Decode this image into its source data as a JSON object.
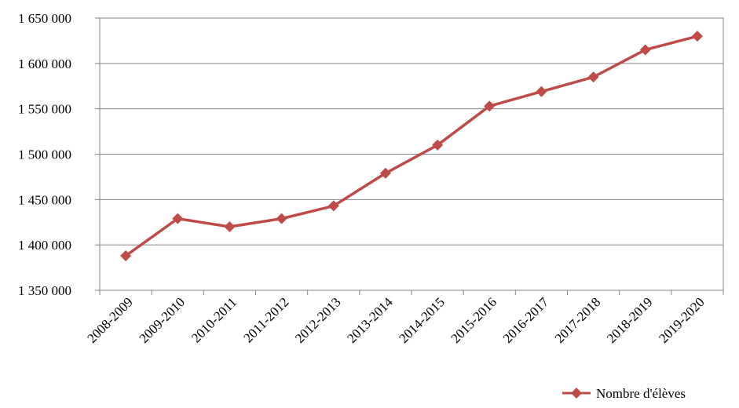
{
  "chart_data": {
    "type": "line",
    "title": "",
    "xlabel": "",
    "ylabel": "",
    "categories": [
      "2008-2009",
      "2009-2010",
      "2010-2011",
      "2011-2012",
      "2012-2013",
      "2013-2014",
      "2014-2015",
      "2015-2016",
      "2016-2017",
      "2017-2018",
      "2018-2019",
      "2019-2020"
    ],
    "series": [
      {
        "name": "Nombre d'élèves",
        "color": "#BE4B48",
        "marker": "diamond",
        "values": [
          1388000,
          1429000,
          1420000,
          1429000,
          1443000,
          1479000,
          1510000,
          1553000,
          1569000,
          1585000,
          1615000,
          1630000
        ]
      }
    ],
    "ylim": [
      1350000,
      1650000
    ],
    "yticks": [
      1350000,
      1400000,
      1450000,
      1500000,
      1550000,
      1600000,
      1650000
    ],
    "ytick_labels": [
      "1 350 000",
      "1 400 000",
      "1 450 000",
      "1 500 000",
      "1 550 000",
      "1 600 000",
      "1 650 000"
    ],
    "grid": "horizontal",
    "legend_position": "bottom-right"
  }
}
